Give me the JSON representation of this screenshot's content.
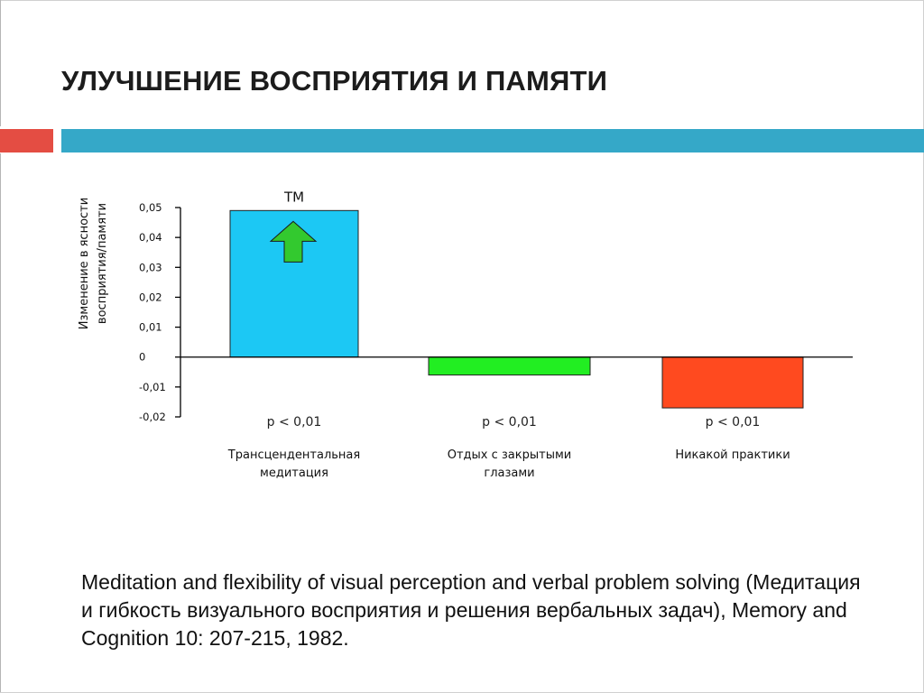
{
  "slide": {
    "title": "УЛУЧШЕНИЕ ВОСПРИЯТИЯ И ПАМЯТИ",
    "citation": "Meditation and flexibility of visual perception and verbal problem solving (Медитация и гибкость визуального восприятия и решения вербальных задач), Memory and Cognition 10: 207-215, 1982.",
    "accent_colors": {
      "red": "#e44d43",
      "blue": "#35a8c8"
    }
  },
  "chart_data": {
    "type": "bar",
    "ylabel_lines": [
      "Изменение в ясности",
      "восприятия/памяти"
    ],
    "ylim": [
      -0.02,
      0.05
    ],
    "yticks": [
      {
        "value": 0.05,
        "label": "0,05"
      },
      {
        "value": 0.04,
        "label": "0,04"
      },
      {
        "value": 0.03,
        "label": "0,03"
      },
      {
        "value": 0.02,
        "label": "0,02"
      },
      {
        "value": 0.01,
        "label": "0,01"
      },
      {
        "value": 0,
        "label": "0"
      },
      {
        "value": -0.01,
        "label": "-0,01"
      },
      {
        "value": -0.02,
        "label": "-0,02"
      }
    ],
    "grid": false,
    "legend": "none",
    "categories": [
      {
        "lines": [
          "Трансцендентальная",
          "медитация"
        ],
        "value": 0.049,
        "color": "#1cc8f4",
        "pvalue": "p < 0,01",
        "bar_label": "ТМ",
        "arrow": "up-arrow-icon",
        "arrow_color": "#33c92f"
      },
      {
        "lines": [
          "Отдых с закрытыми",
          "глазами"
        ],
        "value": -0.006,
        "color": "#22ee22",
        "pvalue": "p < 0,01"
      },
      {
        "lines": [
          "Никакой практики"
        ],
        "value": -0.017,
        "color": "#ff4a1f",
        "pvalue": "p < 0,01"
      }
    ]
  }
}
